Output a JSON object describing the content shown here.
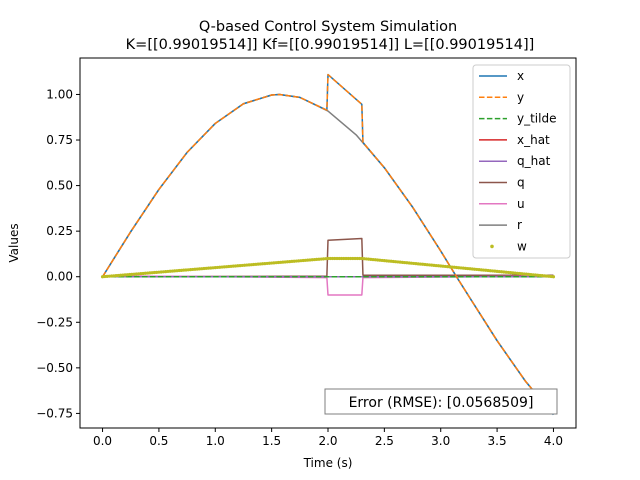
{
  "chart_data": {
    "type": "line",
    "title": "Q-based Control System Simulation",
    "subtitle": "K=[[0.99019514]] Kf=[[0.99019514]] L=[[0.99019514]]",
    "xlabel": "Time (s)",
    "ylabel": "Values",
    "xlim": [
      -0.2,
      4.2
    ],
    "ylim": [
      -0.83,
      1.2
    ],
    "xticks": [
      0.0,
      0.5,
      1.0,
      1.5,
      2.0,
      2.5,
      3.0,
      3.5,
      4.0
    ],
    "xtick_labels": [
      "0.0",
      "0.5",
      "1.0",
      "1.5",
      "2.0",
      "2.5",
      "3.0",
      "3.5",
      "4.0"
    ],
    "yticks": [
      -0.75,
      -0.5,
      -0.25,
      0.0,
      0.25,
      0.5,
      0.75,
      1.0
    ],
    "ytick_labels": [
      "−0.75",
      "−0.50",
      "−0.25",
      "0.00",
      "0.25",
      "0.50",
      "0.75",
      "1.00"
    ],
    "grid": false,
    "legend_position": "top-right",
    "annotation": "Error (RMSE): [0.0568509]",
    "series": [
      {
        "name": "x",
        "color": "#1f77b4",
        "style": "solid",
        "points": [
          [
            0,
            0
          ],
          [
            0.25,
            0.247
          ],
          [
            0.5,
            0.479
          ],
          [
            0.75,
            0.682
          ],
          [
            1.0,
            0.841
          ],
          [
            1.25,
            0.949
          ],
          [
            1.5,
            0.997
          ],
          [
            1.57,
            1.0
          ],
          [
            1.75,
            0.984
          ],
          [
            1.99,
            0.914
          ],
          [
            2.0,
            1.109
          ],
          [
            2.3,
            0.946
          ],
          [
            2.31,
            0.737
          ],
          [
            2.5,
            0.598
          ],
          [
            2.75,
            0.382
          ],
          [
            3.0,
            0.141
          ],
          [
            3.14,
            0.0
          ],
          [
            3.25,
            -0.108
          ],
          [
            3.5,
            -0.351
          ],
          [
            3.75,
            -0.572
          ],
          [
            4.0,
            -0.757
          ]
        ]
      },
      {
        "name": "y",
        "color": "#ff7f0e",
        "style": "dashed",
        "points": [
          [
            0,
            0
          ],
          [
            0.25,
            0.247
          ],
          [
            0.5,
            0.479
          ],
          [
            0.75,
            0.682
          ],
          [
            1.0,
            0.841
          ],
          [
            1.25,
            0.949
          ],
          [
            1.5,
            0.997
          ],
          [
            1.57,
            1.0
          ],
          [
            1.75,
            0.984
          ],
          [
            1.99,
            0.914
          ],
          [
            2.0,
            1.109
          ],
          [
            2.3,
            0.946
          ],
          [
            2.31,
            0.737
          ],
          [
            2.5,
            0.598
          ],
          [
            2.75,
            0.382
          ],
          [
            3.0,
            0.141
          ],
          [
            3.14,
            0.0
          ],
          [
            3.25,
            -0.108
          ],
          [
            3.5,
            -0.351
          ],
          [
            3.75,
            -0.572
          ],
          [
            4.0,
            -0.757
          ]
        ]
      },
      {
        "name": "y_tilde",
        "color": "#2ca02c",
        "style": "dashed",
        "points": [
          [
            0,
            0
          ],
          [
            1.99,
            0
          ],
          [
            2.0,
            0.0
          ],
          [
            2.3,
            0.0
          ],
          [
            2.31,
            0
          ],
          [
            4.0,
            0
          ]
        ]
      },
      {
        "name": "x_hat",
        "color": "#d62728",
        "style": "solid",
        "points": [
          [
            0,
            0
          ],
          [
            4.0,
            0
          ]
        ]
      },
      {
        "name": "q_hat",
        "color": "#9467bd",
        "style": "solid",
        "points": [
          [
            0,
            0
          ],
          [
            4.0,
            0
          ]
        ]
      },
      {
        "name": "q",
        "color": "#8c564b",
        "style": "solid",
        "points": [
          [
            0,
            0
          ],
          [
            1.99,
            0.003
          ],
          [
            2.0,
            0.2
          ],
          [
            2.3,
            0.21
          ],
          [
            2.31,
            0.008
          ],
          [
            4.0,
            0.008
          ]
        ]
      },
      {
        "name": "u",
        "color": "#e377c2",
        "style": "solid",
        "points": [
          [
            0,
            0.005
          ],
          [
            1.99,
            -0.005
          ],
          [
            2.0,
            -0.1
          ],
          [
            2.3,
            -0.1
          ],
          [
            2.31,
            -0.005
          ],
          [
            4.0,
            0.003
          ]
        ]
      },
      {
        "name": "r",
        "color": "#7f7f7f",
        "style": "solid",
        "points": [
          [
            0,
            0
          ],
          [
            0.25,
            0.247
          ],
          [
            0.5,
            0.479
          ],
          [
            0.75,
            0.682
          ],
          [
            1.0,
            0.841
          ],
          [
            1.25,
            0.949
          ],
          [
            1.5,
            0.997
          ],
          [
            1.57,
            1.0
          ],
          [
            1.75,
            0.984
          ],
          [
            2.0,
            0.909
          ],
          [
            2.25,
            0.778
          ],
          [
            2.5,
            0.598
          ],
          [
            2.75,
            0.382
          ],
          [
            3.0,
            0.141
          ],
          [
            3.14,
            0.0
          ],
          [
            3.25,
            -0.108
          ],
          [
            3.5,
            -0.351
          ],
          [
            3.75,
            -0.572
          ],
          [
            4.0,
            -0.757
          ]
        ]
      },
      {
        "name": "w",
        "color": "#bcbd22",
        "style": "dots",
        "points": [
          [
            0,
            0
          ],
          [
            2.0,
            0.1
          ],
          [
            2.3,
            0.1
          ],
          [
            4.0,
            0
          ]
        ]
      }
    ]
  }
}
